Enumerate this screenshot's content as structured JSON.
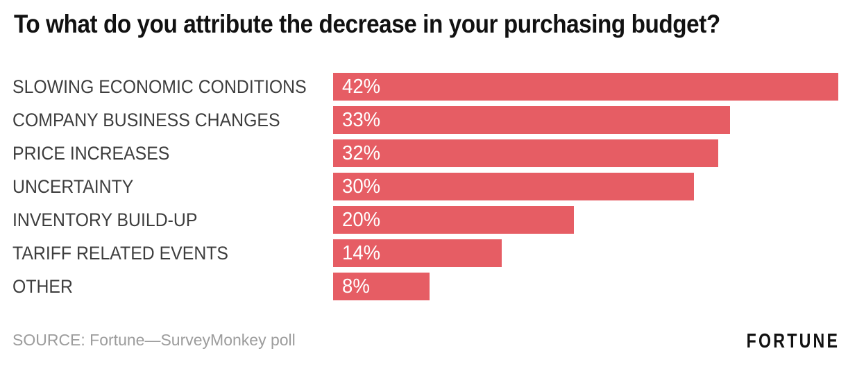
{
  "title": "To what do you attribute the decrease in your purchasing budget?",
  "footer": {
    "source": "SOURCE: Fortune—SurveyMonkey poll",
    "brand": "FORTUNE"
  },
  "colors": {
    "background": "#FFFFFF",
    "bar": "#E65D64",
    "title_text": "#111111",
    "category_text": "#3D3D3D",
    "value_text": "#FFFFFF",
    "source_text": "#9C9C9C",
    "brand_text": "#111111"
  },
  "chart_data": {
    "type": "bar",
    "orientation": "horizontal",
    "title": "To what do you attribute the decrease in your purchasing budget?",
    "categories": [
      "SLOWING ECONOMIC CONDITIONS",
      "COMPANY BUSINESS CHANGES",
      "PRICE INCREASES",
      "UNCERTAINTY",
      "INVENTORY BUILD-UP",
      "TARIFF RELATED EVENTS",
      "OTHER"
    ],
    "values": [
      42,
      33,
      32,
      30,
      20,
      14,
      8
    ],
    "value_labels": [
      "42%",
      "33%",
      "32%",
      "30%",
      "20%",
      "14%",
      "8%"
    ],
    "unit": "%",
    "axis_max": 42,
    "value_label_position": "inside-left",
    "grid": false,
    "legend": false,
    "source": "SOURCE: Fortune—SurveyMonkey poll"
  }
}
